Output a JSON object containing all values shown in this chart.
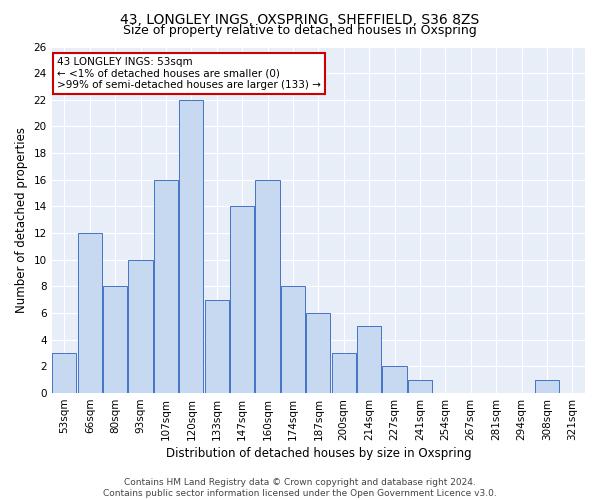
{
  "title1": "43, LONGLEY INGS, OXSPRING, SHEFFIELD, S36 8ZS",
  "title2": "Size of property relative to detached houses in Oxspring",
  "xlabel": "Distribution of detached houses by size in Oxspring",
  "ylabel": "Number of detached properties",
  "categories": [
    "53sqm",
    "66sqm",
    "80sqm",
    "93sqm",
    "107sqm",
    "120sqm",
    "133sqm",
    "147sqm",
    "160sqm",
    "174sqm",
    "187sqm",
    "200sqm",
    "214sqm",
    "227sqm",
    "241sqm",
    "254sqm",
    "267sqm",
    "281sqm",
    "294sqm",
    "308sqm",
    "321sqm"
  ],
  "values": [
    3,
    12,
    8,
    10,
    16,
    22,
    7,
    14,
    16,
    8,
    6,
    3,
    5,
    2,
    1,
    0,
    0,
    0,
    0,
    1,
    0
  ],
  "bar_color": "#c6d9f0",
  "bar_edge_color": "#4472c4",
  "annotation_line1": "43 LONGLEY INGS: 53sqm",
  "annotation_line2": "← <1% of detached houses are smaller (0)",
  "annotation_line3": ">99% of semi-detached houses are larger (133) →",
  "annotation_box_color": "#ffffff",
  "annotation_box_edge": "#cc0000",
  "footer_text": "Contains HM Land Registry data © Crown copyright and database right 2024.\nContains public sector information licensed under the Open Government Licence v3.0.",
  "ylim": [
    0,
    26
  ],
  "yticks": [
    0,
    2,
    4,
    6,
    8,
    10,
    12,
    14,
    16,
    18,
    20,
    22,
    24,
    26
  ],
  "background_color": "#e8eef8",
  "grid_color": "#ffffff",
  "title1_fontsize": 10,
  "title2_fontsize": 9,
  "axis_label_fontsize": 8.5,
  "tick_fontsize": 7.5,
  "footer_fontsize": 6.5,
  "annotation_fontsize": 7.5
}
